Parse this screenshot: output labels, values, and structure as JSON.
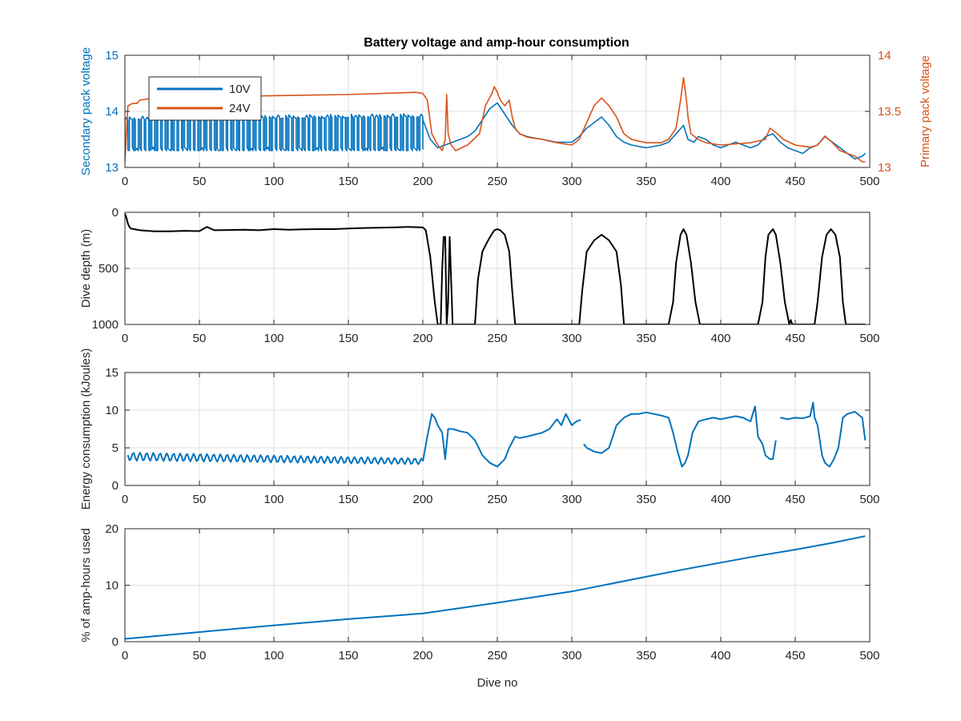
{
  "figure": {
    "title": "Battery voltage and amp-hour consumption",
    "colors": {
      "blue": "#0072BD",
      "orange": "#D95319",
      "black": "#000000",
      "grid": "#DFDFDF",
      "axis": "#262626"
    }
  },
  "chart_data": [
    {
      "type": "line",
      "title": "Battery voltage and amp-hour consumption",
      "xlabel": "",
      "ylabel": "Secondary pack voltage",
      "ylabel_right": "Primary pack voltage",
      "xlim": [
        0,
        500
      ],
      "ylim": [
        13,
        15
      ],
      "ylim_right": [
        13,
        14
      ],
      "xticks": [
        0,
        50,
        100,
        150,
        200,
        250,
        300,
        350,
        400,
        450,
        500
      ],
      "yticks": [
        13,
        14,
        15
      ],
      "yticks_right": [
        13,
        13.5,
        14
      ],
      "grid": true,
      "legend": {
        "position": "top-left",
        "entries": [
          "10V",
          "24V"
        ]
      },
      "series": [
        {
          "name": "10V",
          "axis": "left",
          "color": "#0072BD",
          "style": "toggle",
          "band_low": [
            [
              0,
              13.3
            ],
            [
              200,
              13.3
            ]
          ],
          "band_high": [
            [
              0,
              13.85
            ],
            [
              200,
              13.9
            ]
          ],
          "x": [
            200,
            205,
            210,
            215,
            220,
            225,
            230,
            235,
            240,
            245,
            250,
            255,
            260,
            265,
            270,
            280,
            290,
            300,
            305,
            310,
            315,
            320,
            325,
            330,
            335,
            340,
            350,
            360,
            365,
            370,
            375,
            378,
            382,
            385,
            390,
            395,
            400,
            405,
            410,
            415,
            420,
            425,
            430,
            435,
            440,
            445,
            450,
            455,
            460,
            465,
            470,
            475,
            480,
            485,
            490,
            495,
            497
          ],
          "y": [
            13.85,
            13.5,
            13.35,
            13.4,
            13.45,
            13.5,
            13.55,
            13.65,
            13.85,
            14.05,
            14.15,
            13.95,
            13.75,
            13.6,
            13.55,
            13.5,
            13.45,
            13.45,
            13.55,
            13.7,
            13.8,
            13.9,
            13.75,
            13.55,
            13.45,
            13.4,
            13.35,
            13.4,
            13.45,
            13.6,
            13.75,
            13.5,
            13.45,
            13.55,
            13.5,
            13.4,
            13.35,
            13.4,
            13.45,
            13.4,
            13.35,
            13.4,
            13.55,
            13.6,
            13.45,
            13.35,
            13.3,
            13.25,
            13.35,
            13.4,
            13.55,
            13.45,
            13.35,
            13.25,
            13.15,
            13.2,
            13.25
          ]
        },
        {
          "name": "24V",
          "axis": "right",
          "color": "#D95319",
          "x": [
            0,
            2,
            5,
            8,
            10,
            20,
            50,
            100,
            150,
            195,
            200,
            203,
            206,
            210,
            213,
            215,
            216,
            217,
            219,
            222,
            230,
            238,
            242,
            246,
            248,
            250,
            252,
            255,
            258,
            260,
            262,
            265,
            270,
            280,
            290,
            300,
            305,
            310,
            315,
            320,
            325,
            330,
            335,
            340,
            350,
            360,
            365,
            370,
            373,
            375,
            377,
            378,
            380,
            385,
            390,
            400,
            420,
            430,
            433,
            438,
            442,
            450,
            460,
            465,
            470,
            475,
            480,
            490,
            495,
            497
          ],
          "y": [
            13.05,
            13.55,
            13.57,
            13.57,
            13.6,
            13.62,
            13.63,
            13.64,
            13.65,
            13.67,
            13.66,
            13.6,
            13.3,
            13.2,
            13.15,
            13.25,
            13.65,
            13.3,
            13.2,
            13.15,
            13.2,
            13.3,
            13.55,
            13.65,
            13.72,
            13.67,
            13.6,
            13.55,
            13.6,
            13.45,
            13.35,
            13.3,
            13.27,
            13.25,
            13.22,
            13.2,
            13.25,
            13.4,
            13.55,
            13.62,
            13.55,
            13.45,
            13.3,
            13.25,
            13.22,
            13.22,
            13.25,
            13.35,
            13.6,
            13.8,
            13.6,
            13.45,
            13.3,
            13.25,
            13.22,
            13.2,
            13.22,
            13.25,
            13.35,
            13.3,
            13.25,
            13.2,
            13.18,
            13.2,
            13.28,
            13.22,
            13.15,
            13.1,
            13.05,
            13.05
          ]
        }
      ]
    },
    {
      "type": "line",
      "xlabel": "",
      "ylabel": "Dive depth (m)",
      "xlim": [
        0,
        500
      ],
      "ylim": [
        0,
        1000
      ],
      "y_reversed": true,
      "xticks": [
        0,
        50,
        100,
        150,
        200,
        250,
        300,
        350,
        400,
        450,
        500
      ],
      "yticks": [
        0,
        500,
        1000
      ],
      "grid": true,
      "series": [
        {
          "color": "#000000",
          "x": [
            0,
            1,
            2,
            3,
            4,
            6,
            10,
            15,
            20,
            30,
            40,
            50,
            55,
            60,
            70,
            80,
            90,
            100,
            110,
            120,
            130,
            140,
            150,
            160,
            170,
            180,
            190,
            200,
            202,
            205,
            208,
            210,
            212,
            213,
            214,
            215,
            216,
            217,
            218,
            220,
            230,
            235,
            237,
            240,
            243,
            246,
            248,
            250,
            252,
            255,
            258,
            260,
            262,
            265,
            280,
            300,
            305,
            307,
            310,
            315,
            320,
            325,
            330,
            333,
            335,
            340,
            350,
            360,
            365,
            368,
            370,
            373,
            375,
            377,
            380,
            383,
            386,
            390,
            400,
            410,
            420,
            425,
            428,
            430,
            432,
            435,
            437,
            440,
            443,
            446,
            447,
            448,
            450,
            460,
            463,
            465,
            468,
            471,
            474,
            477,
            480,
            482,
            484,
            490,
            497
          ],
          "y": [
            10,
            50,
            100,
            130,
            145,
            150,
            160,
            165,
            170,
            170,
            165,
            168,
            130,
            160,
            158,
            155,
            160,
            150,
            155,
            152,
            150,
            150,
            145,
            140,
            138,
            135,
            130,
            135,
            160,
            400,
            800,
            1000,
            1000,
            500,
            220,
            220,
            1000,
            800,
            220,
            1000,
            1000,
            1000,
            600,
            350,
            270,
            200,
            160,
            150,
            160,
            200,
            350,
            700,
            1000,
            1000,
            1000,
            1000,
            1000,
            700,
            350,
            250,
            200,
            250,
            350,
            650,
            1000,
            1000,
            1000,
            1000,
            1000,
            800,
            450,
            200,
            150,
            200,
            450,
            800,
            1000,
            1000,
            1000,
            1000,
            1000,
            1000,
            800,
            400,
            200,
            150,
            200,
            450,
            800,
            1000,
            960,
            1000,
            1000,
            1000,
            1000,
            800,
            400,
            200,
            150,
            200,
            400,
            800,
            1000,
            1000,
            1000
          ]
        }
      ]
    },
    {
      "type": "line",
      "xlabel": "",
      "ylabel": "Energy consumption (kJoules)",
      "xlim": [
        0,
        500
      ],
      "ylim": [
        0,
        15
      ],
      "xticks": [
        0,
        50,
        100,
        150,
        200,
        250,
        300,
        350,
        400,
        450,
        500
      ],
      "yticks": [
        0,
        5,
        10,
        15
      ],
      "grid": true,
      "series": [
        {
          "color": "#0072BD",
          "style": "oscillating",
          "band_low": [
            [
              0,
              3.3
            ],
            [
              200,
              2.8
            ]
          ],
          "band_high": [
            [
              0,
              4.4
            ],
            [
              200,
              3.6
            ]
          ],
          "segments": [
            {
              "x": [
                200,
                203,
                206,
                208,
                210,
                213,
                215,
                217,
                220,
                225,
                230,
                235,
                240,
                245,
                250,
                255,
                258,
                262,
                265,
                270,
                280,
                285,
                290,
                293,
                296,
                300,
                303,
                306
              ],
              "y": [
                3.2,
                6.5,
                9.5,
                9.0,
                8.0,
                7.0,
                3.5,
                7.5,
                7.5,
                7.2,
                7.0,
                6.0,
                4.0,
                3.0,
                2.5,
                3.5,
                5.0,
                6.5,
                6.3,
                6.5,
                7.0,
                7.5,
                8.8,
                8.0,
                9.5,
                8.0,
                8.5,
                8.7
              ]
            },
            {
              "x": [
                308,
                310,
                315,
                320,
                325,
                330,
                335,
                340,
                345,
                350,
                355,
                360,
                365,
                368,
                371,
                374,
                376,
                378,
                381,
                385,
                390,
                395,
                400,
                405,
                410,
                415,
                420,
                423,
                425,
                428,
                430,
                433,
                435,
                437
              ],
              "y": [
                5.5,
                5.0,
                4.5,
                4.3,
                5.0,
                8.0,
                9.0,
                9.5,
                9.5,
                9.7,
                9.5,
                9.3,
                9.0,
                7.0,
                4.5,
                2.5,
                3.0,
                4.0,
                7.0,
                8.5,
                8.8,
                9.0,
                8.8,
                9.0,
                9.2,
                9.0,
                8.5,
                10.5,
                6.5,
                5.5,
                4.0,
                3.5,
                3.5,
                6.0
              ]
            },
            {
              "x": [
                440,
                445,
                450,
                455,
                460,
                462,
                463,
                465,
                468,
                470,
                473,
                476,
                479,
                482,
                485,
                490,
                495,
                497
              ],
              "y": [
                9.0,
                8.8,
                9.0,
                8.9,
                9.2,
                11.0,
                9.0,
                8.0,
                4.0,
                3.0,
                2.5,
                3.5,
                5.0,
                9.0,
                9.5,
                9.8,
                9.0,
                6.0
              ]
            }
          ]
        }
      ]
    },
    {
      "type": "line",
      "xlabel": "Dive no",
      "ylabel": "% of amp-hours used",
      "xlim": [
        0,
        500
      ],
      "ylim": [
        0,
        20
      ],
      "xticks": [
        0,
        50,
        100,
        150,
        200,
        250,
        300,
        350,
        400,
        450,
        500
      ],
      "yticks": [
        0,
        10,
        20
      ],
      "grid": true,
      "series": [
        {
          "color": "#0072BD",
          "x": [
            0,
            50,
            100,
            150,
            200,
            250,
            300,
            350,
            375,
            400,
            425,
            450,
            475,
            497
          ],
          "y": [
            0.5,
            1.7,
            2.9,
            4.0,
            5.0,
            6.9,
            8.9,
            11.5,
            12.8,
            14.0,
            15.2,
            16.3,
            17.5,
            18.7
          ]
        }
      ]
    }
  ]
}
